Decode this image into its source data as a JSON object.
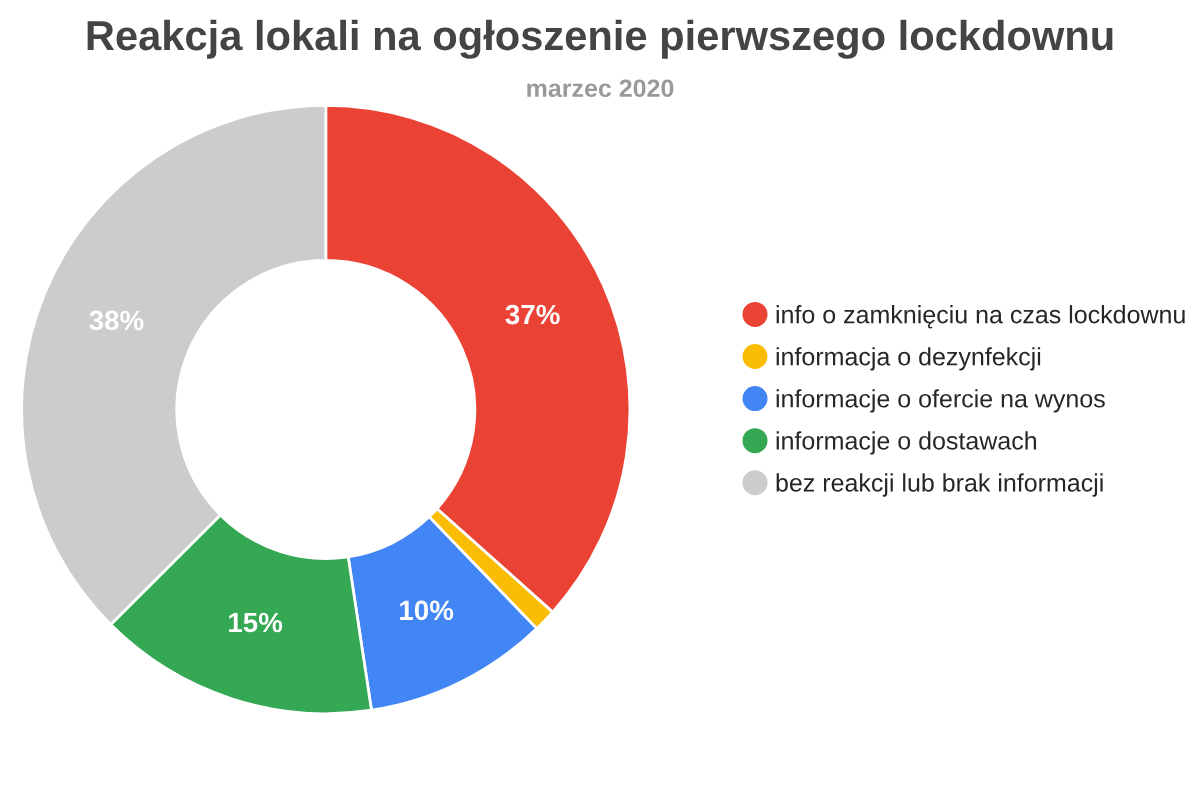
{
  "chart_data": {
    "type": "donut",
    "title": "Reakcja lokali na ogłoszenie pierwszego lockdownu",
    "subtitle": "marzec 2020",
    "categories": [
      "info o zamknięciu na czas lockdownu",
      "informacja o dezynfekcji",
      "informacje o ofercie na wynos",
      "informacje o dostawach",
      "bez reakcji lub brak informacji"
    ],
    "values": [
      36.6,
      1.2,
      9.8,
      14.9,
      37.5
    ],
    "value_labels": [
      "37%",
      null,
      "10%",
      "15%",
      "38%"
    ],
    "colors": [
      "#ea4335",
      "#fbbc04",
      "#4285f4",
      "#34a853",
      "#cccccc"
    ],
    "legend": "right"
  }
}
